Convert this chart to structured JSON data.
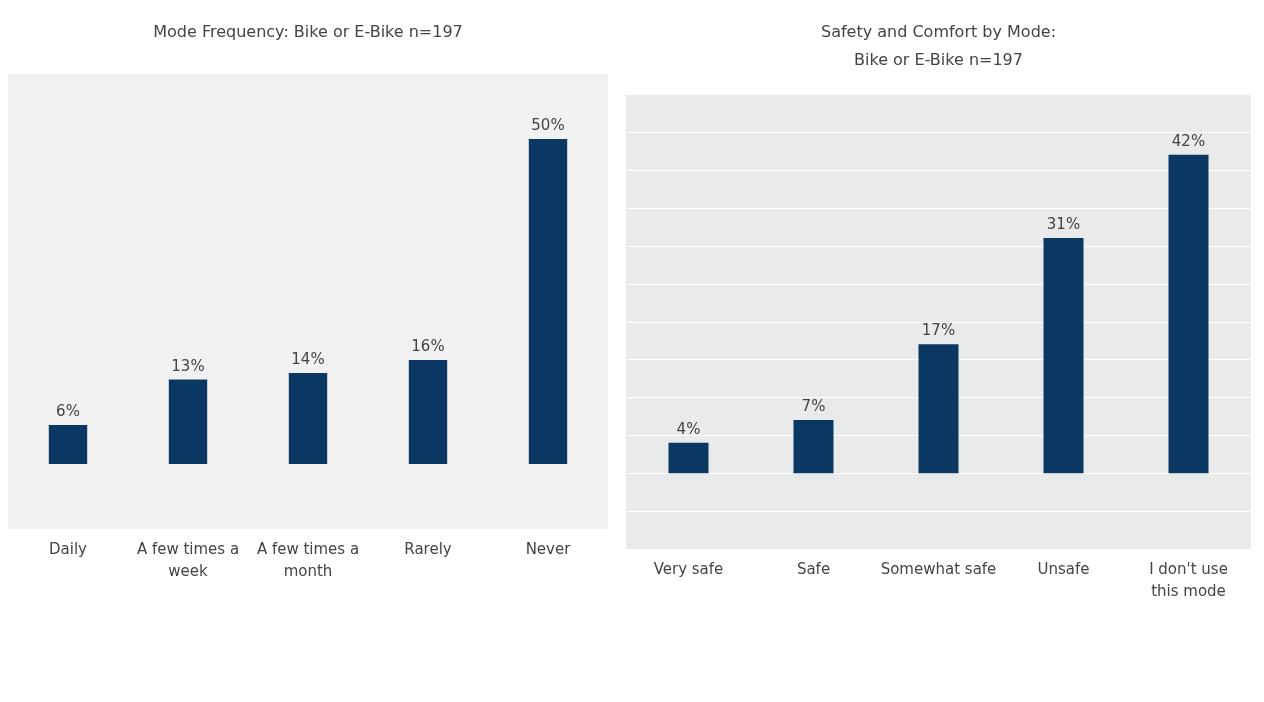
{
  "chart_data": [
    {
      "type": "bar",
      "title": "Mode Frequency: Bike or E-Bike n=197",
      "categories": [
        "Daily",
        "A few times a week",
        "A few times a month",
        "Rarely",
        "Never"
      ],
      "values": [
        6,
        13,
        14,
        16,
        50
      ],
      "value_labels": [
        "6%",
        "13%",
        "14%",
        "16%",
        "50%"
      ],
      "color": "#0b3763",
      "tick_labels": "x",
      "grid": false
    },
    {
      "type": "bar",
      "title": "Safety and Comfort by Mode:\nBike or E-Bike n=197",
      "categories": [
        "Very safe",
        "Safe",
        "Somewhat safe",
        "Unsafe",
        "I don't use this mode"
      ],
      "values": [
        4,
        7,
        17,
        31,
        42
      ],
      "value_labels": [
        "4%",
        "7%",
        "17%",
        "31%",
        "42%"
      ],
      "color": "#0b3763",
      "tick_labels": "x",
      "grid": "y"
    }
  ]
}
